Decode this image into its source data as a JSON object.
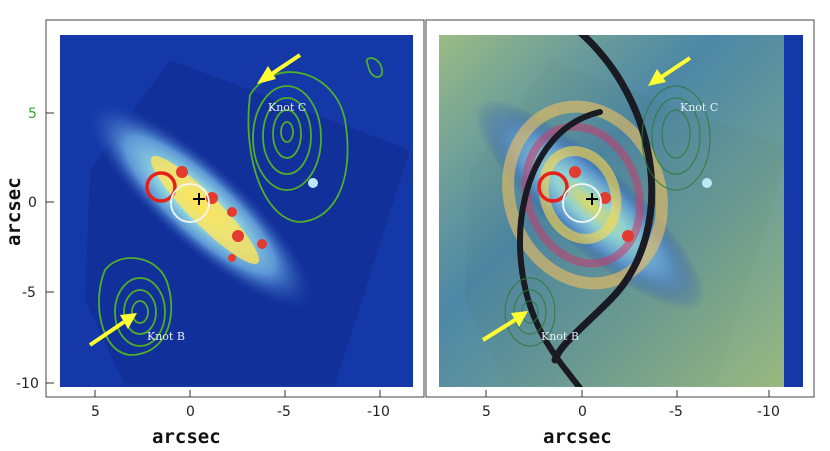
{
  "figure": {
    "x_axis_title": "arcsec",
    "y_axis_title": "arcsec",
    "x_ticks": [
      "5",
      "0",
      "-5",
      "-10"
    ],
    "y_ticks": [
      "5",
      "0",
      "-5",
      "-10"
    ],
    "highlight_tick": "5",
    "colors": {
      "background_map": "#1538a8",
      "contour": "#4fae2a",
      "arrow": "#ffff33",
      "red_circle": "#e8201c",
      "white_circle": "#f5f5f5",
      "highlight_tick": "#3aa23a",
      "spiral_band": "#1a1a22"
    }
  },
  "panels": [
    {
      "id": "left",
      "annotations": {
        "knot_c": "Knot C",
        "knot_b": "Knot B"
      },
      "has_spiral_overlay": false
    },
    {
      "id": "right",
      "annotations": {
        "knot_c": "Knot C",
        "knot_b": "Knot B"
      },
      "has_spiral_overlay": true
    }
  ]
}
